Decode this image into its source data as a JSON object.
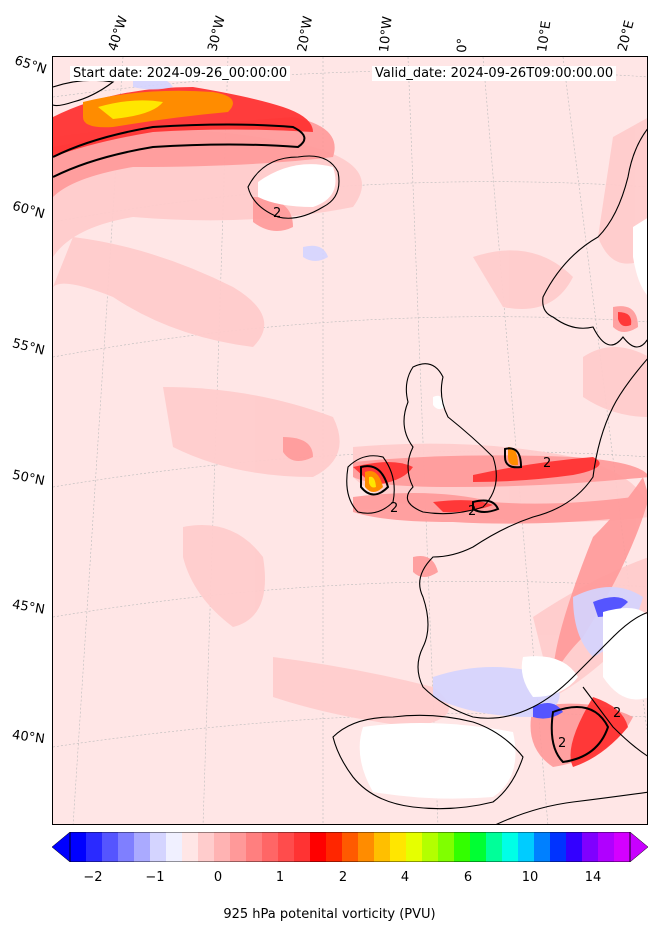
{
  "map": {
    "start_date": "Start date: 2024-09-26_00:00:00",
    "valid_date": "Valid_date: 2024-09-26T09:00:00.00",
    "lon_labels": [
      "40°W",
      "30°W",
      "20°W",
      "10°W",
      "0°",
      "10°E",
      "20°E"
    ],
    "lat_labels": [
      "65°N",
      "60°N",
      "55°N",
      "50°N",
      "45°N",
      "40°N"
    ],
    "contour_label": "2"
  },
  "colorbar": {
    "ticks": [
      "−2",
      "−1",
      "0",
      "1",
      "2",
      "4",
      "6",
      "10",
      "14"
    ],
    "label": "925 hPa potenital vorticity (PVU)",
    "colors": [
      "#0000ff",
      "#2a2aff",
      "#5555ff",
      "#7f7fff",
      "#aaaaff",
      "#d4d4ff",
      "#f0f0ff",
      "#ffe6e6",
      "#ffcccc",
      "#ffb3b3",
      "#ff9999",
      "#ff7f7f",
      "#ff6666",
      "#ff4c4c",
      "#ff3333",
      "#ff0000",
      "#ff2600",
      "#ff5a00",
      "#ff8c00",
      "#ffbf00",
      "#ffe600",
      "#e6ff00",
      "#b3ff00",
      "#80ff00",
      "#33ff00",
      "#00ff33",
      "#00ff99",
      "#00ffe6",
      "#00ccff",
      "#0080ff",
      "#0033ff",
      "#3300ff",
      "#8000ff",
      "#b000ff",
      "#d400ff"
    ]
  }
}
